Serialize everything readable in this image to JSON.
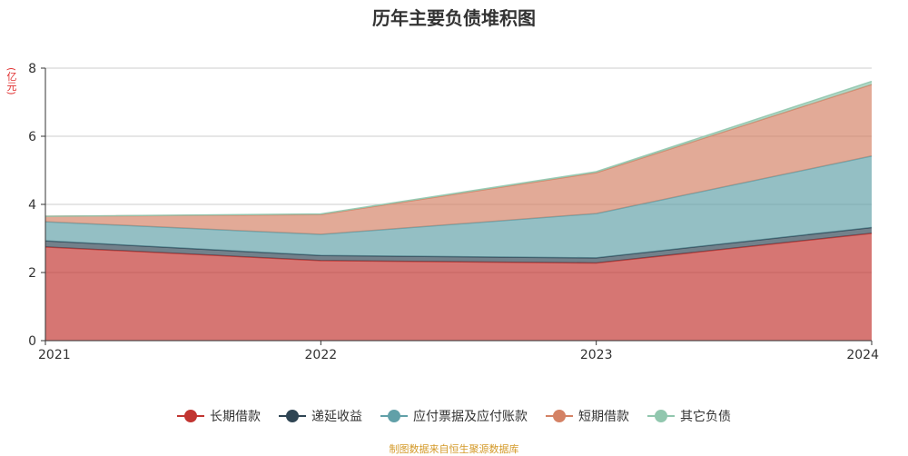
{
  "chart_data": {
    "type": "area",
    "stacked": true,
    "title": "历年主要负债堆积图",
    "unit_label": "(亿元)",
    "x": [
      "2021",
      "2022",
      "2023",
      "2024"
    ],
    "yticks": [
      "0",
      "2",
      "4",
      "6",
      "8"
    ],
    "ylim": [
      0,
      8
    ],
    "grid": true,
    "legend_position": "bottom",
    "series": [
      {
        "name": "长期借款",
        "color": "#c23531",
        "values": [
          2.75,
          2.35,
          2.28,
          3.15
        ]
      },
      {
        "name": "递延收益",
        "color": "#2f4554",
        "values": [
          0.18,
          0.15,
          0.15,
          0.17
        ]
      },
      {
        "name": "应付票据及应付账款",
        "color": "#61a0a8",
        "values": [
          0.56,
          0.62,
          1.3,
          2.1
        ]
      },
      {
        "name": "短期借款",
        "color": "#d48265",
        "values": [
          0.16,
          0.58,
          1.2,
          2.1
        ]
      },
      {
        "name": "其它负债",
        "color": "#91c7ae",
        "values": [
          0.0,
          0.02,
          0.03,
          0.09
        ]
      }
    ]
  },
  "footer": {
    "source": "制图数据来自恒生聚源数据库"
  }
}
